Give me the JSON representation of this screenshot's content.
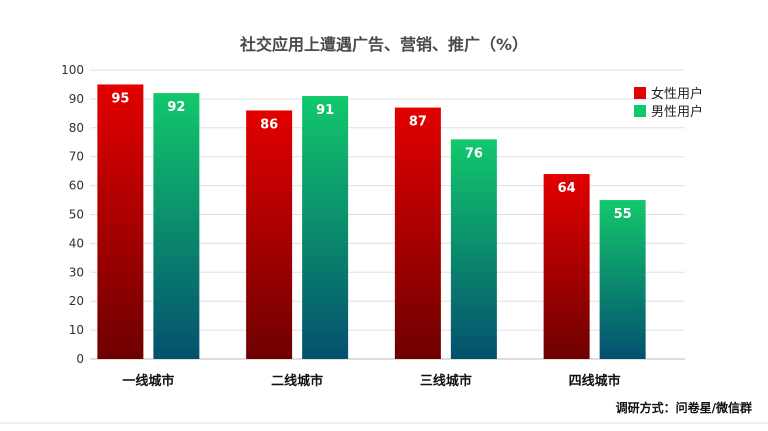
{
  "chart_data": {
    "type": "bar",
    "title": "社交应用上遭遇广告、营销、推广（%）",
    "categories": [
      "一线城市",
      "二线城市",
      "三线城市",
      "四线城市"
    ],
    "series": [
      {
        "name": "女性用户",
        "values": [
          95,
          86,
          87,
          64
        ],
        "color": "#e30000"
      },
      {
        "name": "男性用户",
        "values": [
          92,
          91,
          76,
          55
        ],
        "color": "#12c86c"
      }
    ],
    "ylim": [
      0,
      100
    ],
    "yticks": [
      0,
      10,
      20,
      30,
      40,
      50,
      60,
      70,
      80,
      90,
      100
    ],
    "grid": true,
    "legend_position": "top-right",
    "data_labels": true
  },
  "colors": {
    "female_top": "#e30000",
    "female_bottom": "#6e0000",
    "male_top": "#12c86c",
    "male_bottom": "#04506e"
  },
  "source_text": "调研方式：问卷星/微信群"
}
